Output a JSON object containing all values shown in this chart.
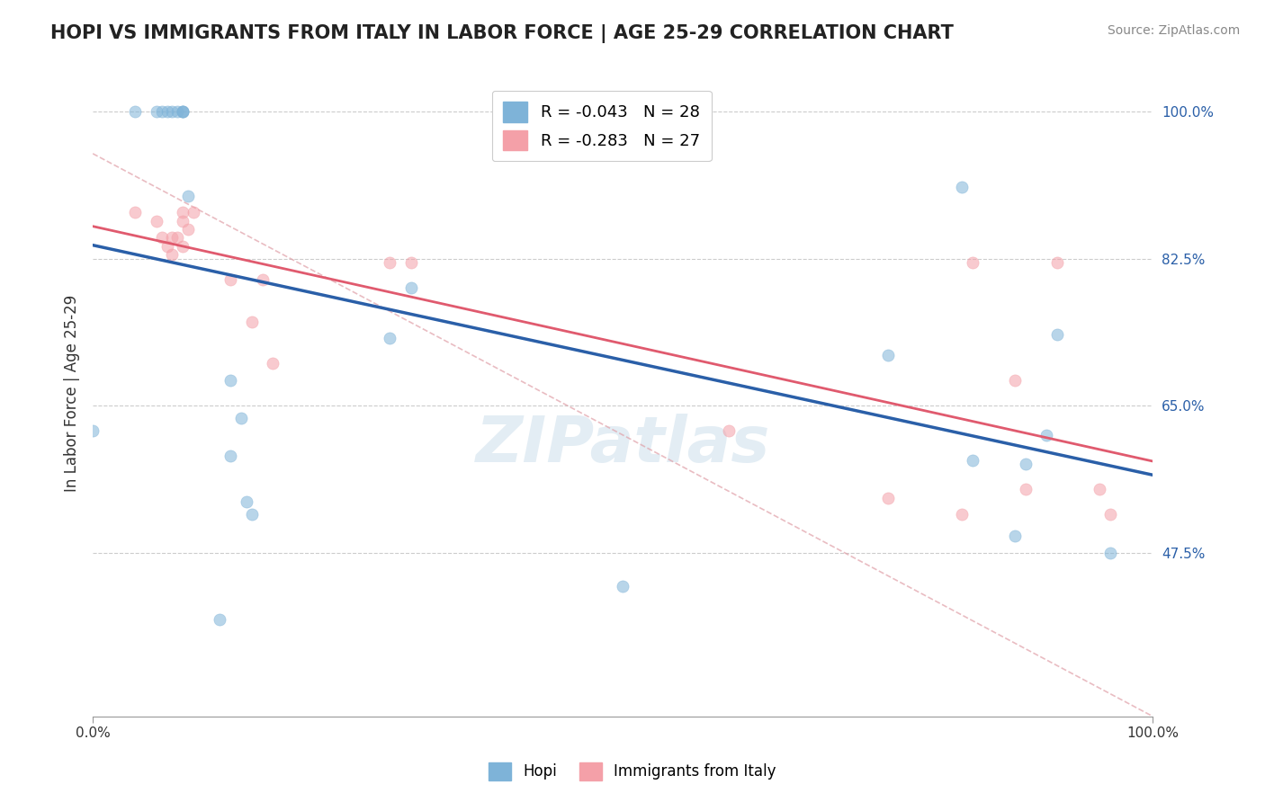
{
  "title": "HOPI VS IMMIGRANTS FROM ITALY IN LABOR FORCE | AGE 25-29 CORRELATION CHART",
  "source_text": "Source: ZipAtlas.com",
  "xlabel": "",
  "ylabel": "In Labor Force | Age 25-29",
  "xlim": [
    0.0,
    1.0
  ],
  "ylim": [
    0.28,
    1.05
  ],
  "yticks": [
    0.475,
    0.65,
    0.825,
    1.0
  ],
  "ytick_labels": [
    "47.5%",
    "65.0%",
    "82.5%",
    "100.0%"
  ],
  "xticks": [
    0.0,
    0.25,
    0.5,
    0.75,
    1.0
  ],
  "xtick_labels": [
    "0.0%",
    "",
    "",
    "",
    "100.0%"
  ],
  "hopi_R": -0.043,
  "hopi_N": 28,
  "italy_R": -0.283,
  "italy_N": 27,
  "hopi_color": "#7eb3d8",
  "italy_color": "#f4a0a8",
  "hopi_line_color": "#2a5fa8",
  "italy_line_color": "#e05a6e",
  "diagonal_color": "#e0a0a8",
  "background_color": "#ffffff",
  "grid_color": "#cccccc",
  "hopi_x": [
    0.04,
    0.06,
    0.065,
    0.07,
    0.075,
    0.08,
    0.085,
    0.085,
    0.085,
    0.09,
    0.13,
    0.28,
    0.3,
    0.75,
    0.82,
    0.9,
    0.91,
    0.14,
    0.0,
    0.13,
    0.145,
    0.15,
    0.5,
    0.83,
    0.87,
    0.88,
    0.96,
    0.12
  ],
  "hopi_y": [
    1.0,
    1.0,
    1.0,
    1.0,
    1.0,
    1.0,
    1.0,
    1.0,
    1.0,
    0.9,
    0.68,
    0.73,
    0.79,
    0.71,
    0.91,
    0.615,
    0.735,
    0.635,
    0.62,
    0.59,
    0.535,
    0.52,
    0.435,
    0.585,
    0.495,
    0.58,
    0.475,
    0.395
  ],
  "italy_x": [
    0.04,
    0.06,
    0.065,
    0.07,
    0.075,
    0.075,
    0.08,
    0.085,
    0.085,
    0.085,
    0.09,
    0.095,
    0.13,
    0.15,
    0.16,
    0.17,
    0.28,
    0.3,
    0.6,
    0.75,
    0.82,
    0.83,
    0.87,
    0.88,
    0.91,
    0.95,
    0.96
  ],
  "italy_y": [
    0.88,
    0.87,
    0.85,
    0.84,
    0.83,
    0.85,
    0.85,
    0.88,
    0.84,
    0.87,
    0.86,
    0.88,
    0.8,
    0.75,
    0.8,
    0.7,
    0.82,
    0.82,
    0.62,
    0.54,
    0.52,
    0.82,
    0.68,
    0.55,
    0.82,
    0.55,
    0.52
  ],
  "watermark": "ZIPatlas",
  "marker_size": 90,
  "marker_alpha": 0.55,
  "marker_edge_width": 0.5
}
